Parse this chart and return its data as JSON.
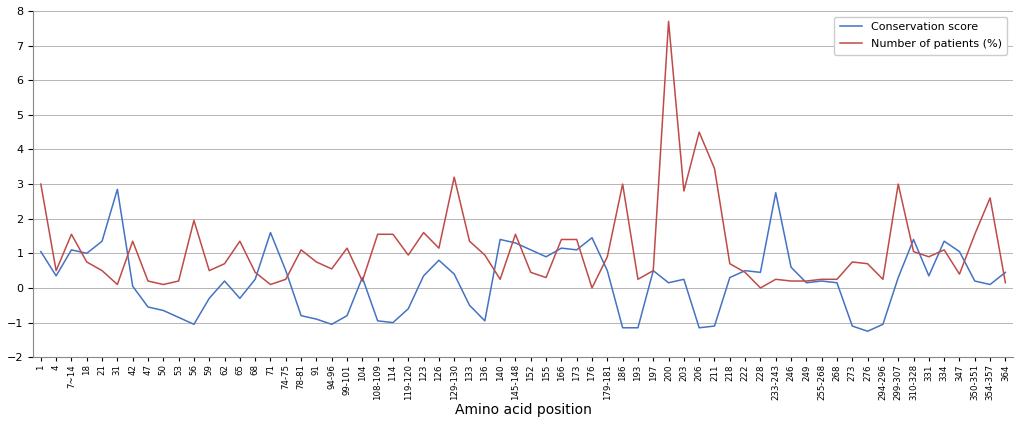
{
  "x_labels": [
    "1",
    "4",
    "7~14",
    "18",
    "21",
    "31",
    "42",
    "47",
    "50",
    "53",
    "56",
    "59",
    "62",
    "65",
    "68",
    "71",
    "74-75",
    "78-81",
    "91",
    "94-96",
    "99-101",
    "104",
    "108-109",
    "114",
    "119-120",
    "123",
    "126",
    "129-130",
    "133",
    "136",
    "140",
    "145-148",
    "152",
    "155",
    "166",
    "173",
    "176",
    "179-181",
    "186",
    "193",
    "197",
    "200",
    "203",
    "206",
    "211",
    "218",
    "222",
    "228",
    "233-243",
    "246",
    "249",
    "255-268",
    "268",
    "273",
    "276",
    "294-296",
    "299-307",
    "310-328",
    "331",
    "334",
    "347",
    "350-351",
    "354-357",
    "364"
  ],
  "conservation_blue": [
    1.05,
    0.35,
    1.1,
    1.0,
    1.35,
    2.85,
    0.05,
    -0.55,
    -0.65,
    -0.85,
    -1.05,
    -0.3,
    0.2,
    -0.3,
    0.25,
    1.6,
    0.5,
    -0.8,
    -0.9,
    -1.05,
    -0.8,
    0.3,
    -0.95,
    -1.0,
    -0.6,
    0.35,
    0.8,
    0.4,
    -0.5,
    -0.95,
    1.4,
    1.3,
    1.1,
    0.9,
    1.15,
    1.1,
    1.45,
    0.5,
    -1.15,
    -1.15,
    0.5,
    0.15,
    0.25,
    -1.15,
    -1.1,
    0.3,
    0.5,
    0.45,
    2.75,
    0.6,
    0.15,
    0.2,
    0.15,
    -1.1,
    -1.25,
    -1.05,
    0.3,
    1.4,
    0.35,
    1.35,
    1.05,
    0.2,
    0.1,
    0.45
  ],
  "patients_red": [
    3.0,
    0.5,
    1.55,
    0.75,
    0.5,
    0.1,
    1.35,
    0.2,
    0.1,
    0.2,
    1.95,
    0.5,
    0.7,
    1.35,
    0.45,
    0.1,
    0.25,
    1.1,
    0.75,
    0.55,
    1.15,
    0.2,
    1.55,
    1.55,
    0.95,
    1.6,
    1.15,
    3.2,
    1.35,
    0.95,
    0.25,
    1.55,
    0.45,
    0.3,
    1.4,
    1.4,
    0.0,
    0.9,
    3.0,
    0.25,
    0.5,
    7.7,
    2.8,
    4.5,
    3.45,
    0.7,
    0.45,
    0.0,
    0.25,
    0.2,
    0.2,
    0.25,
    0.25,
    0.75,
    0.7,
    0.25,
    3.0,
    1.05,
    0.9,
    1.1,
    0.4,
    1.55,
    2.6,
    0.15
  ],
  "blue_color": "#4472C4",
  "red_color": "#BE4B48",
  "ylim": [
    -2,
    8
  ],
  "yticks": [
    -2,
    -1,
    0,
    1,
    2,
    3,
    4,
    5,
    6,
    7,
    8
  ],
  "xlabel": "Amino acid position",
  "legend_labels": [
    "Conservation score",
    "Number of patients (%)"
  ],
  "figsize": [
    10.2,
    4.24
  ],
  "dpi": 100
}
